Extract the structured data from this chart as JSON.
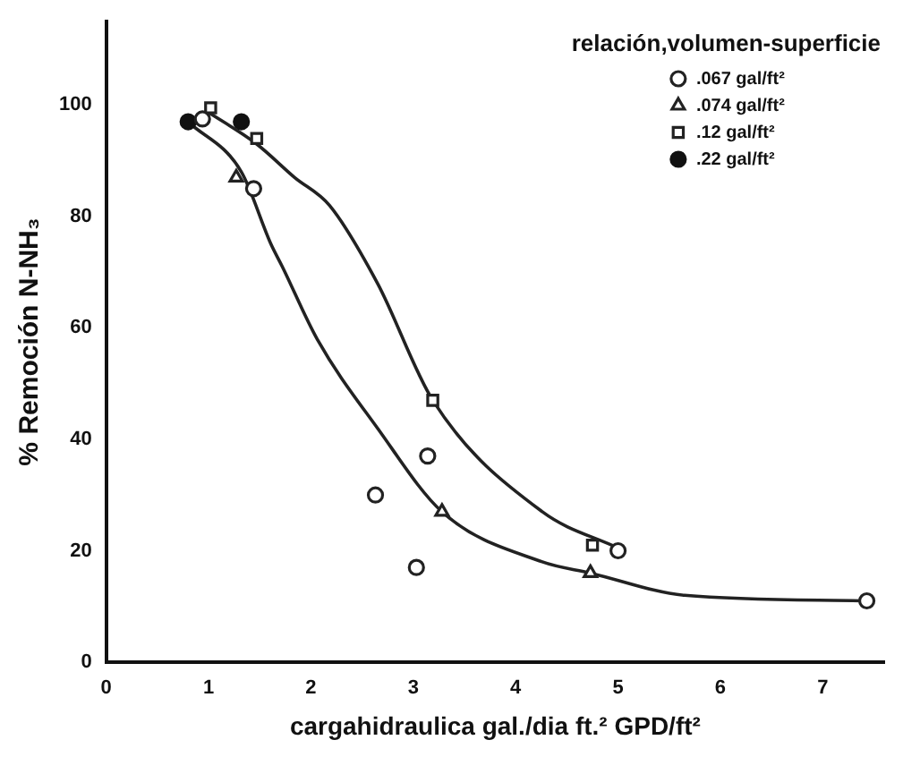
{
  "chart_data": {
    "type": "scatter",
    "xlabel": "cargahidraulica gal./dia ft.² GPD/ft²",
    "ylabel": "% Remoción N-NH₃",
    "legend_title": "relación,volumen-superficie",
    "legend": "top right",
    "grid": false,
    "xlim": [
      0,
      7.6
    ],
    "xticks": [
      0,
      1,
      2,
      3,
      4,
      5,
      6,
      7
    ],
    "ylim": [
      0,
      115
    ],
    "yticks": [
      0,
      20,
      40,
      60,
      80,
      100
    ],
    "series": [
      {
        "name": ".067 gal/ft²",
        "color": "#222222",
        "marker": "circle",
        "x": [
          0.94,
          1.44,
          2.63,
          3.03,
          3.14,
          5.0,
          7.43
        ],
        "values": [
          97.5,
          85,
          30,
          17,
          37,
          20,
          11
        ]
      },
      {
        "name": ".074 gal/ft²",
        "color": "#222222",
        "marker": "triangle",
        "x": [
          1.27,
          3.28,
          4.73
        ],
        "values": [
          87,
          27,
          16
        ]
      },
      {
        "name": ".12 gal/ft²",
        "color": "#222222",
        "marker": "square",
        "x": [
          1.02,
          1.47,
          3.19,
          4.75
        ],
        "values": [
          99.5,
          94,
          47,
          21
        ]
      },
      {
        "name": ".22 gal/ft²",
        "color": "#111111",
        "marker": "filled_circle",
        "x": [
          0.8,
          1.32
        ],
        "values": [
          97,
          97
        ]
      },
      {
        "type": "line",
        "color": "#222222",
        "marker": "none",
        "x": [
          0.97,
          1.47,
          1.84,
          2.18,
          2.65,
          3.19,
          4.26,
          5.0
        ],
        "values": [
          99,
          93,
          87,
          82,
          68,
          47,
          27,
          20.5
        ]
      },
      {
        "type": "line",
        "color": "#222222",
        "marker": "none",
        "x": [
          0.8,
          1.32,
          1.61,
          1.72,
          2.06,
          2.65,
          3.28,
          4.26,
          4.73,
          5.65,
          7.43
        ],
        "values": [
          97,
          88,
          75,
          71,
          58,
          42,
          27,
          18,
          16,
          12,
          11
        ]
      }
    ]
  }
}
